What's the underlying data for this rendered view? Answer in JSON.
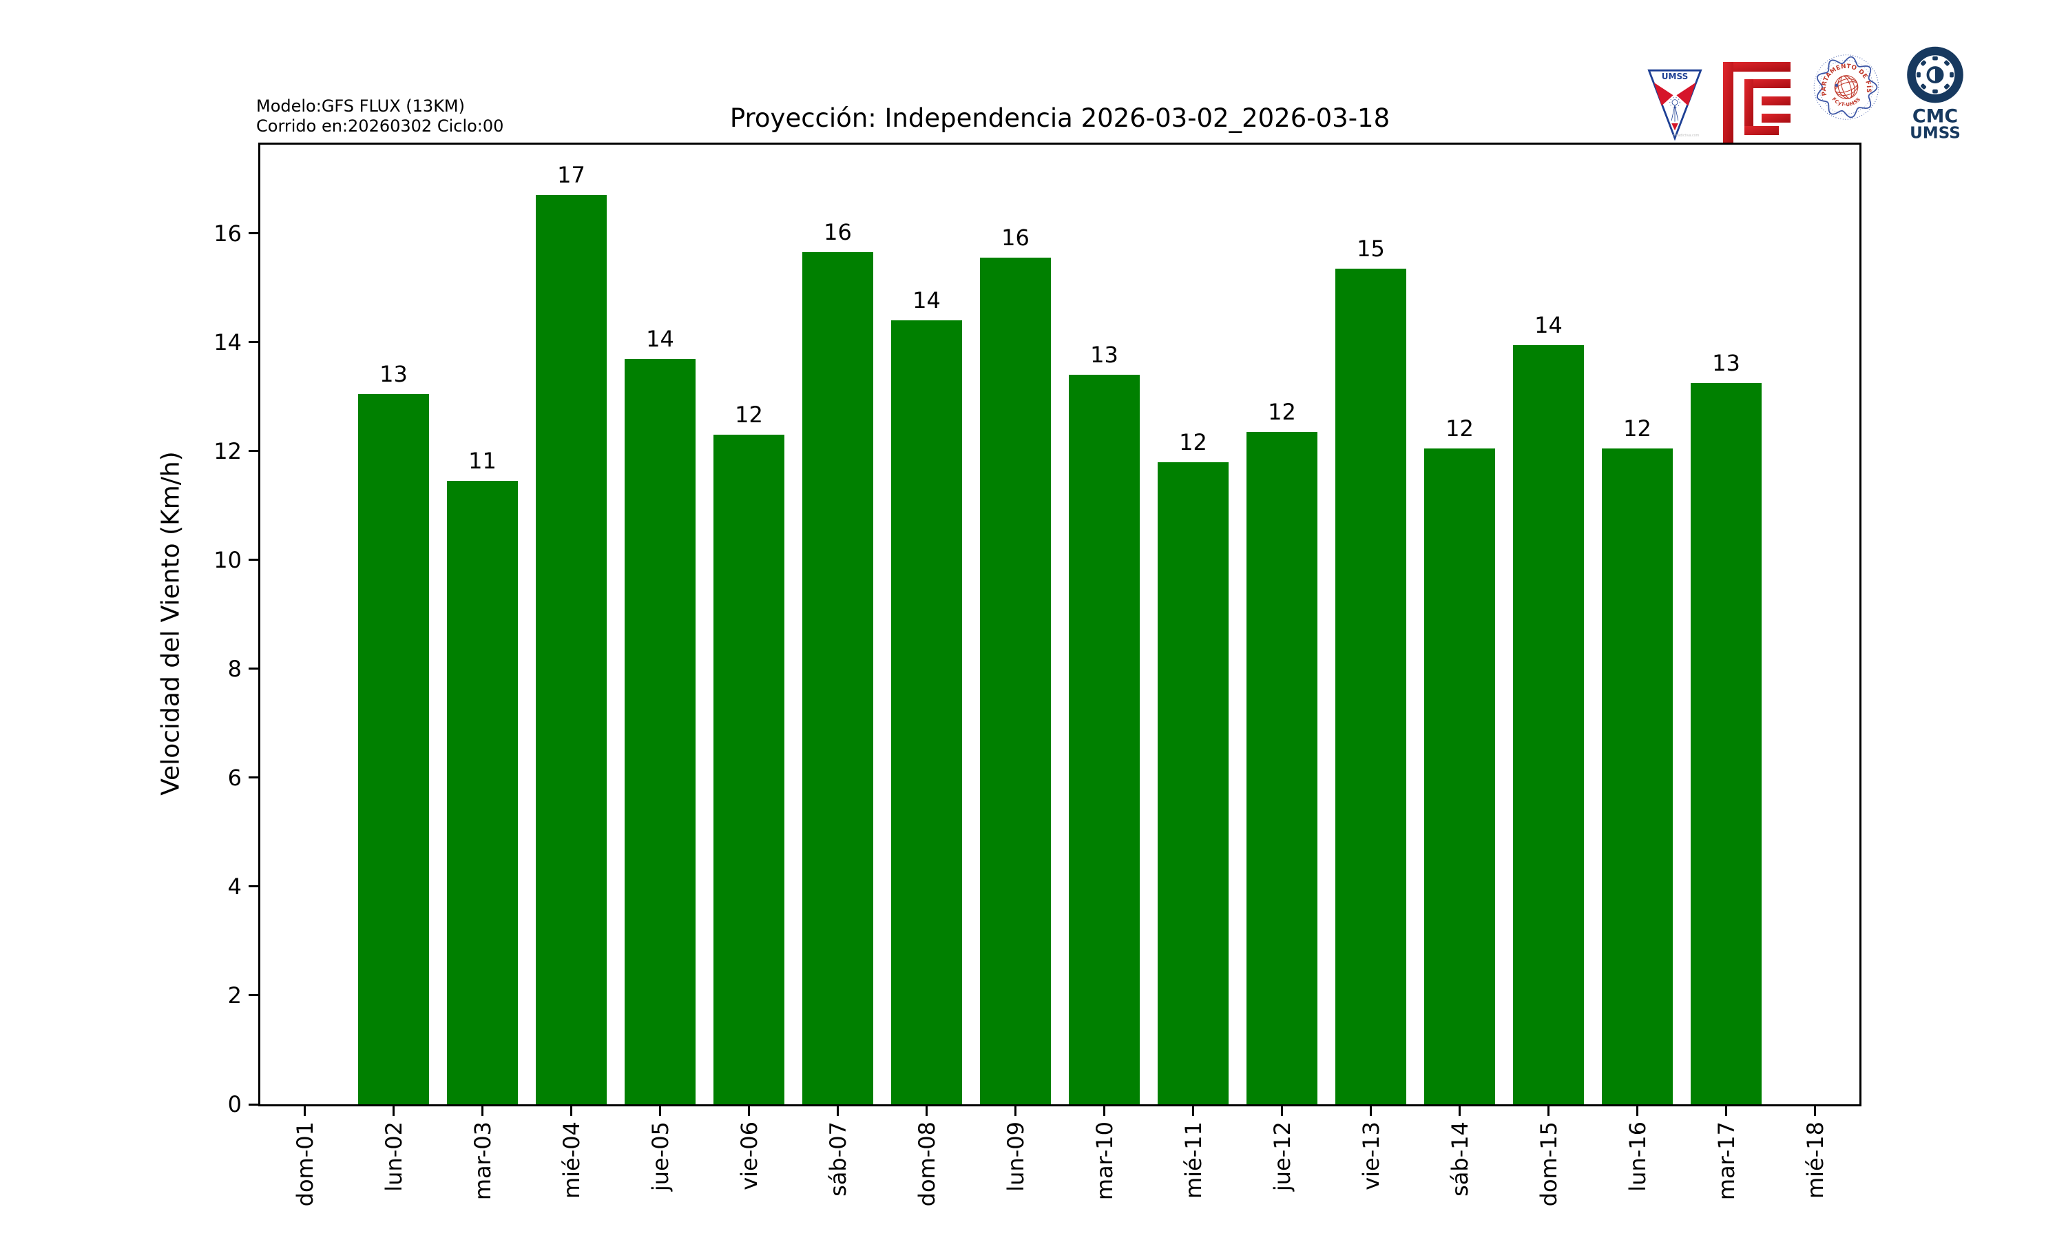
{
  "figure": {
    "model_line1": "Modelo:GFS FLUX (13KM)",
    "model_line2": "Corrido en:20260302 Ciclo:00"
  },
  "logos": {
    "umss": {
      "label": "UMSS",
      "watermark": "preadictiva.com"
    },
    "fisica": {
      "arc_top": "DEPARTAMENTO DE FÍSICA",
      "arc_bottom": "FCyT-UMSS"
    },
    "cmc": {
      "line1": "CMC",
      "line2": "UMSS"
    }
  },
  "colors": {
    "bar": "#008000",
    "axis": "#000000",
    "umss_blue": "#1d3f94",
    "umss_red": "#d6152a",
    "fcyt_red": "#c81017",
    "seal_blue": "#3b55a5",
    "seal_red": "#c0392b",
    "cmc_navy": "#17395f"
  },
  "chart_data": {
    "type": "bar",
    "title": "Proyección: Independencia  2026-03-02_2026-03-18",
    "xlabel": "",
    "ylabel": "Velocidad del Viento (Km/h)",
    "categories": [
      "dom-01",
      "lun-02",
      "mar-03",
      "mié-04",
      "jue-05",
      "vie-06",
      "sáb-07",
      "dom-08",
      "lun-09",
      "mar-10",
      "mié-11",
      "jue-12",
      "vie-13",
      "sáb-14",
      "dom-15",
      "lun-16",
      "mar-17",
      "mié-18"
    ],
    "values": [
      null,
      13.05,
      11.45,
      16.7,
      13.7,
      12.3,
      15.65,
      14.4,
      15.55,
      13.4,
      11.8,
      12.35,
      15.35,
      12.05,
      13.95,
      12.05,
      13.25,
      null
    ],
    "bar_labels": [
      null,
      "13",
      "11",
      "17",
      "14",
      "12",
      "16",
      "14",
      "16",
      "13",
      "12",
      "12",
      "15",
      "12",
      "14",
      "12",
      "13",
      null
    ],
    "yticks": [
      0,
      2,
      4,
      6,
      8,
      10,
      12,
      14,
      16
    ],
    "ylim": [
      0,
      17.63
    ],
    "bar_color": "#008000",
    "bar_width_fraction": 0.8,
    "grid": false,
    "legend": null,
    "x_tick_label_rotation_deg": 90
  }
}
